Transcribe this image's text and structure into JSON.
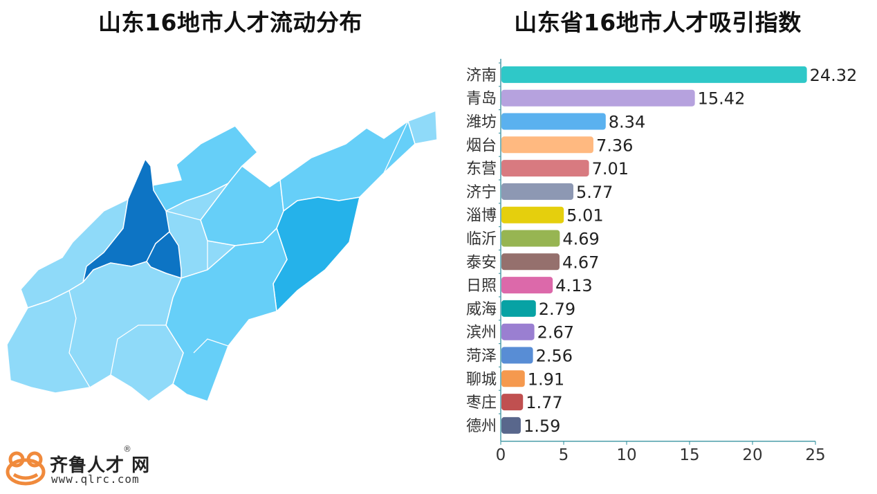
{
  "map_title": "山东16地市人才流动分布",
  "chart_title": "山东省16地市人才吸引指数",
  "colors": {
    "darkest": "#0d74c4",
    "dark": "#25b2ea",
    "medium": "#66cff8",
    "light": "#8fdaf9",
    "border": "#ffffff"
  },
  "chart_data": {
    "type": "bar",
    "orientation": "horizontal",
    "title": "山东省16地市人才吸引指数",
    "categories": [
      "济南",
      "青岛",
      "潍坊",
      "烟台",
      "东营",
      "济宁",
      "淄博",
      "临沂",
      "泰安",
      "日照",
      "威海",
      "滨州",
      "菏泽",
      "聊城",
      "枣庄",
      "德州"
    ],
    "values": [
      24.32,
      15.42,
      8.34,
      7.36,
      7.01,
      5.77,
      5.01,
      4.69,
      4.67,
      4.13,
      2.79,
      2.67,
      2.56,
      1.91,
      1.77,
      1.59
    ],
    "value_labels": [
      "24.32",
      "15.42",
      "8.34",
      "7.36",
      "7.01",
      "5.77",
      "5.01",
      "4.69",
      "4.67",
      "4.13",
      "2.79",
      "2.67",
      "2.56",
      "1.91",
      "1.77",
      "1.59"
    ],
    "bar_colors": [
      "#2fc8c8",
      "#b6a2de",
      "#5ab1ef",
      "#ffb980",
      "#d87a80",
      "#8d98b3",
      "#e5cf0d",
      "#97b552",
      "#95706d",
      "#dc69aa",
      "#07a2a4",
      "#9a7fd1",
      "#588dd5",
      "#f5994e",
      "#c05050",
      "#59678c"
    ],
    "x_ticks": [
      0,
      5,
      10,
      15,
      20,
      25
    ],
    "xlim": [
      0,
      25
    ],
    "grid": false
  },
  "logo": {
    "name": "齐鲁人才",
    "suffix": "网",
    "reg_mark": "®",
    "url": "www.qlrc.com"
  }
}
